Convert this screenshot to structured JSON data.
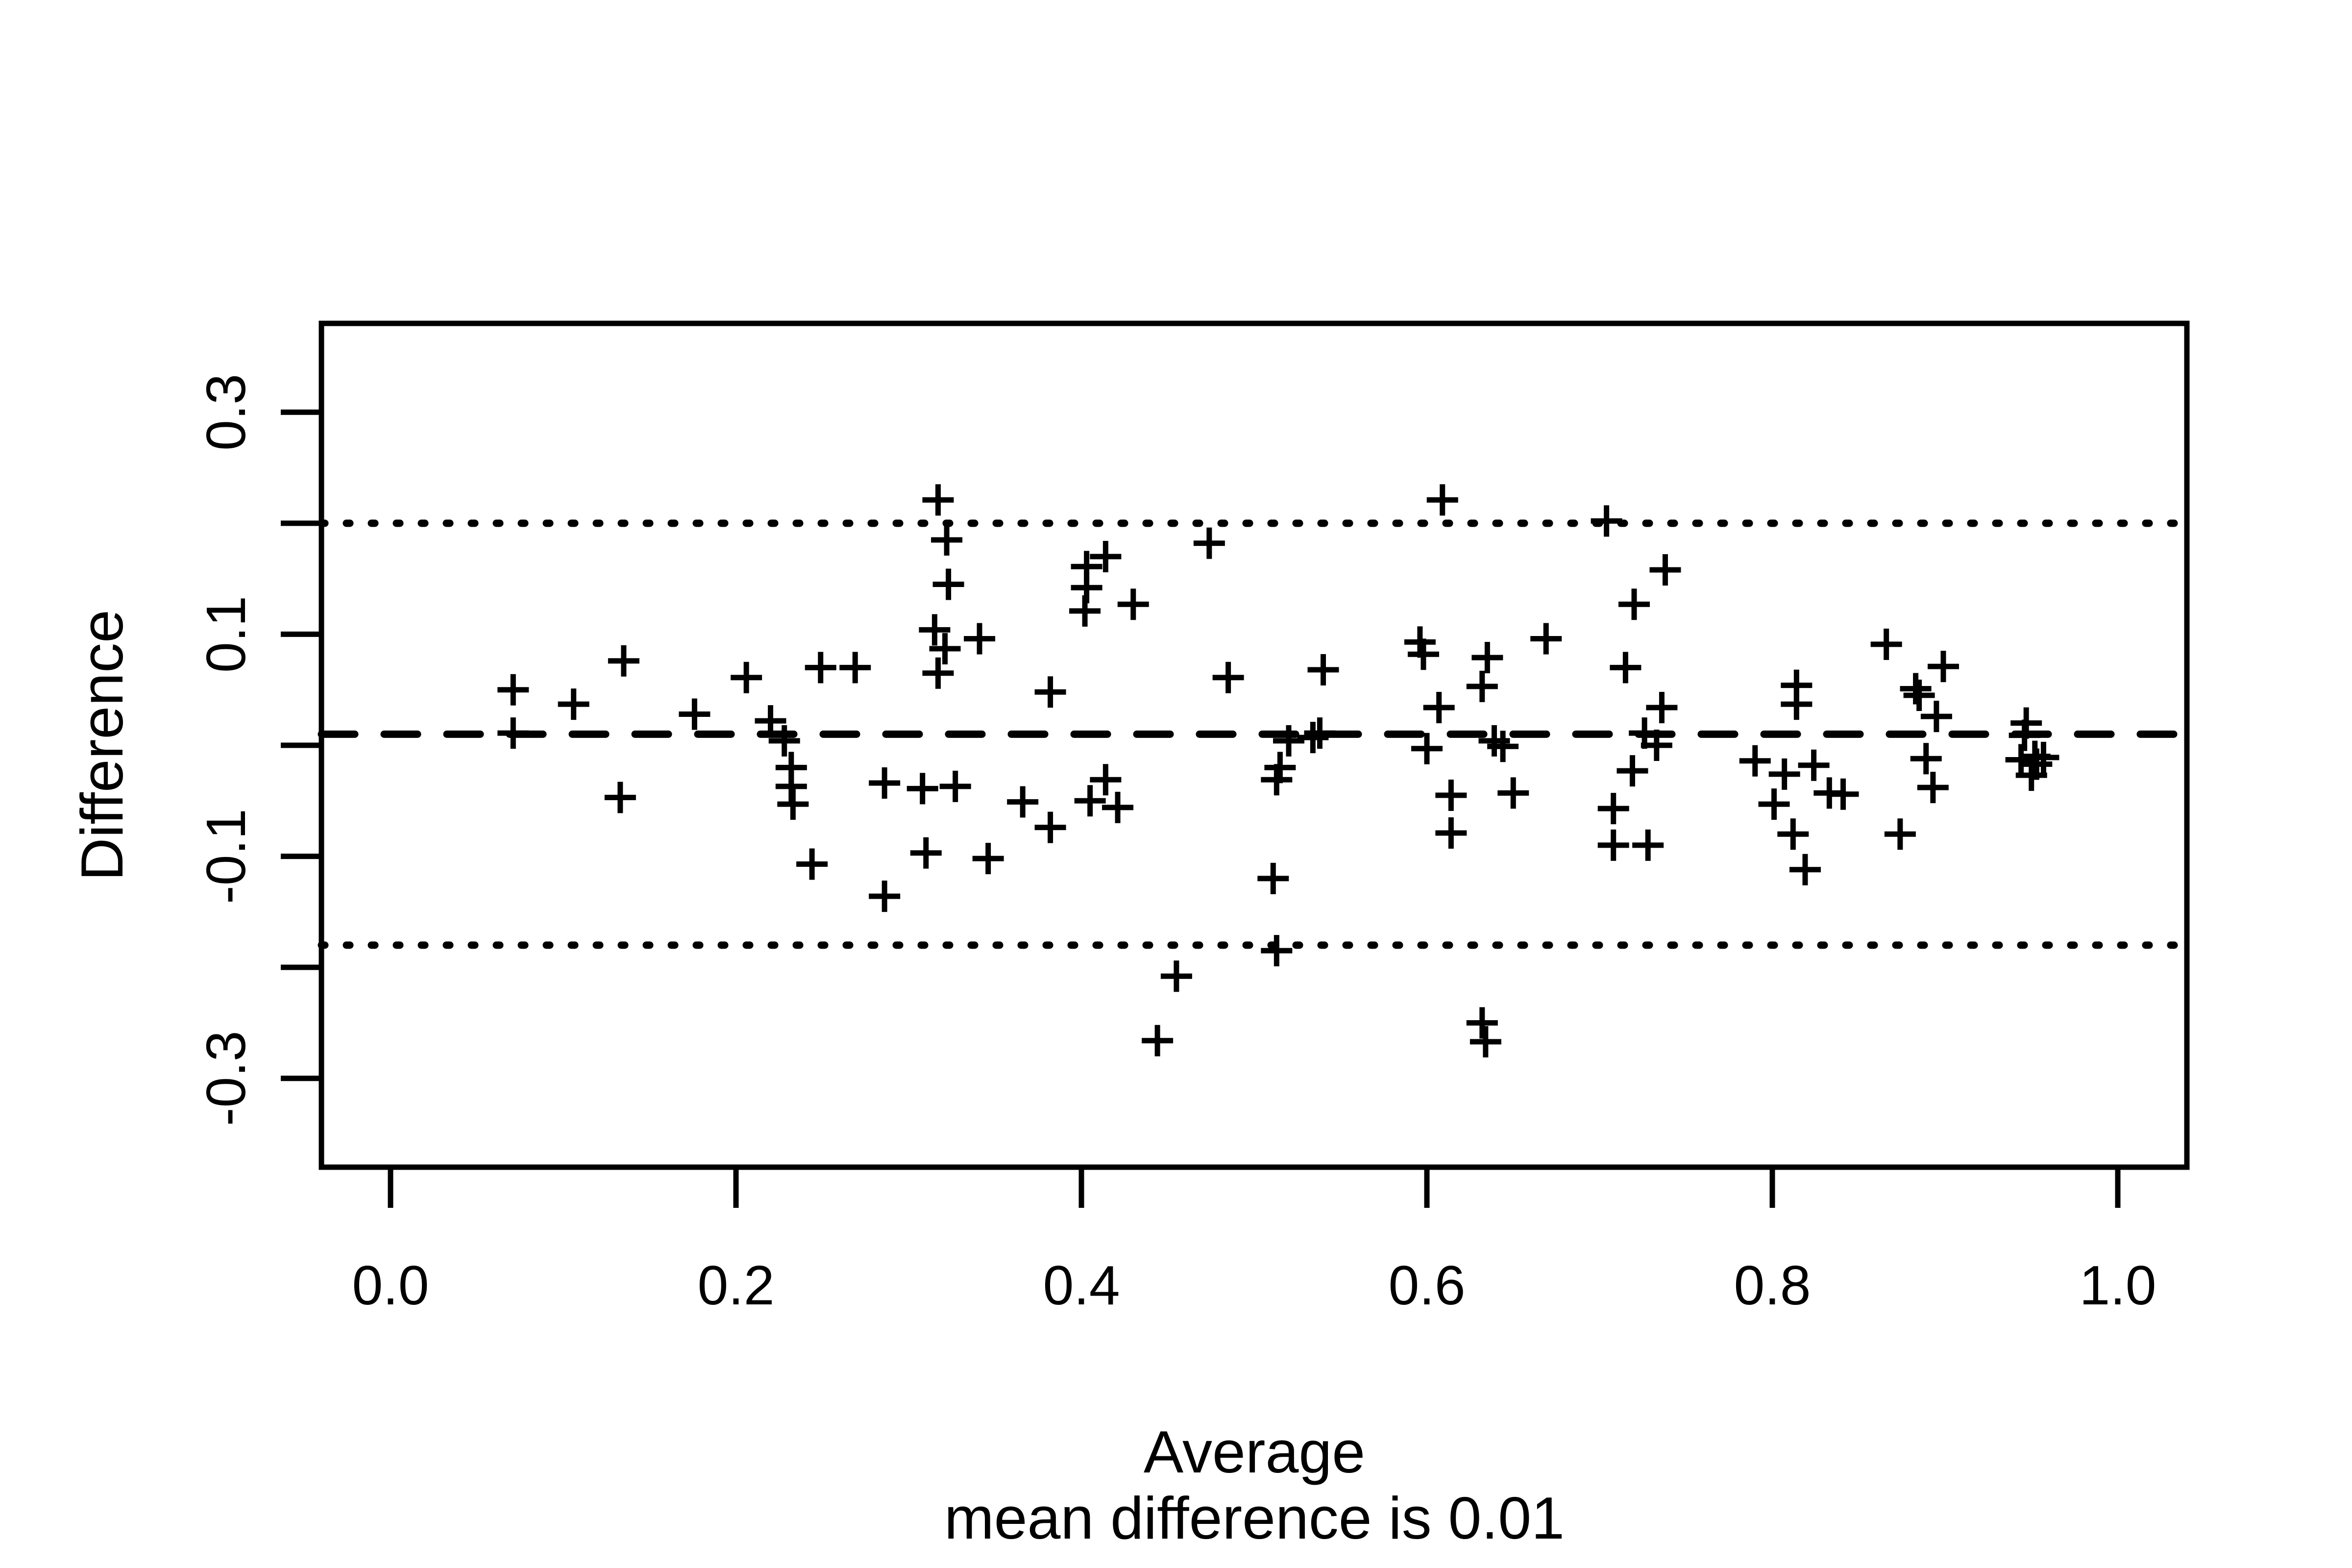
{
  "figure": {
    "background": "#ffffff",
    "stroke_color": "#000000"
  },
  "chart_data": {
    "type": "scatter",
    "marker": "plus-sign",
    "title": "",
    "xlabel": "Average",
    "subtitle": "mean difference is 0.01",
    "ylabel": "Difference",
    "grid": "off",
    "legend": "none",
    "x_axis": {
      "range": [
        -0.04,
        1.04
      ],
      "ticks": [
        0.0,
        0.2,
        0.4,
        0.6,
        0.8,
        1.0
      ],
      "tick_labels": [
        "0.0",
        "0.2",
        "0.4",
        "0.6",
        "0.8",
        "1.0"
      ]
    },
    "y_axis": {
      "range": [
        -0.38,
        0.38
      ],
      "ticks": [
        -0.3,
        -0.2,
        -0.1,
        0.0,
        0.1,
        0.2,
        0.3
      ],
      "labeled_ticks": [
        -0.3,
        -0.1,
        0.1,
        0.3
      ],
      "tick_labels": [
        "-0.3",
        "-0.1",
        "0.1",
        "0.3"
      ]
    },
    "reference_lines": [
      {
        "name": "mean-difference-line",
        "value": 0.01,
        "style": "dashed"
      },
      {
        "name": "upper-limit-line",
        "value": 0.2,
        "style": "dotted"
      },
      {
        "name": "lower-limit-line",
        "value": -0.18,
        "style": "dotted"
      }
    ],
    "points": [
      [
        0.071,
        0.05
      ],
      [
        0.071,
        0.011
      ],
      [
        0.106,
        0.037
      ],
      [
        0.135,
        0.076
      ],
      [
        0.133,
        -0.047
      ],
      [
        0.176,
        0.028
      ],
      [
        0.206,
        0.061
      ],
      [
        0.22,
        0.022
      ],
      [
        0.228,
        0.004
      ],
      [
        0.232,
        -0.02
      ],
      [
        0.232,
        -0.037
      ],
      [
        0.233,
        -0.053
      ],
      [
        0.244,
        -0.107
      ],
      [
        0.249,
        0.07
      ],
      [
        0.269,
        0.07
      ],
      [
        0.286,
        -0.034
      ],
      [
        0.286,
        -0.136
      ],
      [
        0.317,
        0.221
      ],
      [
        0.322,
        0.185
      ],
      [
        0.323,
        0.145
      ],
      [
        0.315,
        0.104
      ],
      [
        0.321,
        0.087
      ],
      [
        0.341,
        0.096
      ],
      [
        0.317,
        0.065
      ],
      [
        0.308,
        -0.039
      ],
      [
        0.327,
        -0.037
      ],
      [
        0.31,
        -0.097
      ],
      [
        0.346,
        -0.102
      ],
      [
        0.366,
        -0.051
      ],
      [
        0.382,
        -0.074
      ],
      [
        0.382,
        0.048
      ],
      [
        0.405,
        -0.05
      ],
      [
        0.414,
        -0.031
      ],
      [
        0.421,
        -0.056
      ],
      [
        0.414,
        0.17
      ],
      [
        0.403,
        0.161
      ],
      [
        0.403,
        0.142
      ],
      [
        0.402,
        0.121
      ],
      [
        0.43,
        0.127
      ],
      [
        0.444,
        -0.266
      ],
      [
        0.455,
        -0.208
      ],
      [
        0.474,
        0.182
      ],
      [
        0.485,
        0.061
      ],
      [
        0.52,
        0.004
      ],
      [
        0.534,
        0.007
      ],
      [
        0.538,
        0.011
      ],
      [
        0.54,
        0.068
      ],
      [
        0.515,
        -0.02
      ],
      [
        0.513,
        -0.031
      ],
      [
        0.511,
        -0.12
      ],
      [
        0.513,
        -0.185
      ],
      [
        0.596,
        0.093
      ],
      [
        0.598,
        0.082
      ],
      [
        0.6,
        -0.003
      ],
      [
        0.609,
        0.221
      ],
      [
        0.607,
        0.034
      ],
      [
        0.614,
        -0.045
      ],
      [
        0.614,
        -0.079
      ],
      [
        0.632,
        0.053
      ],
      [
        0.635,
        0.079
      ],
      [
        0.639,
        0.004
      ],
      [
        0.644,
        -0.001
      ],
      [
        0.65,
        -0.043
      ],
      [
        0.632,
        -0.25
      ],
      [
        0.634,
        -0.267
      ],
      [
        0.669,
        0.096
      ],
      [
        0.704,
        0.202
      ],
      [
        0.738,
        0.158
      ],
      [
        0.72,
        0.127
      ],
      [
        0.715,
        0.07
      ],
      [
        0.736,
        0.034
      ],
      [
        0.726,
        0.011
      ],
      [
        0.733,
        0.0
      ],
      [
        0.719,
        -0.023
      ],
      [
        0.708,
        -0.057
      ],
      [
        0.708,
        -0.09
      ],
      [
        0.728,
        -0.09
      ],
      [
        0.79,
        -0.014
      ],
      [
        0.807,
        -0.026
      ],
      [
        0.824,
        -0.018
      ],
      [
        0.801,
        -0.053
      ],
      [
        0.833,
        -0.043
      ],
      [
        0.812,
        -0.08
      ],
      [
        0.819,
        -0.112
      ],
      [
        0.841,
        -0.044
      ],
      [
        0.814,
        0.054
      ],
      [
        0.814,
        0.037
      ],
      [
        0.866,
        0.091
      ],
      [
        0.899,
        0.071
      ],
      [
        0.883,
        0.051
      ],
      [
        0.885,
        0.045
      ],
      [
        0.895,
        0.026
      ],
      [
        0.889,
        -0.012
      ],
      [
        0.893,
        -0.038
      ],
      [
        0.874,
        -0.08
      ],
      [
        0.947,
        0.02
      ],
      [
        0.946,
        0.009
      ],
      [
        0.944,
        -0.013
      ],
      [
        0.952,
        -0.01
      ],
      [
        0.957,
        -0.011
      ],
      [
        0.953,
        -0.017
      ],
      [
        0.95,
        -0.027
      ]
    ]
  }
}
